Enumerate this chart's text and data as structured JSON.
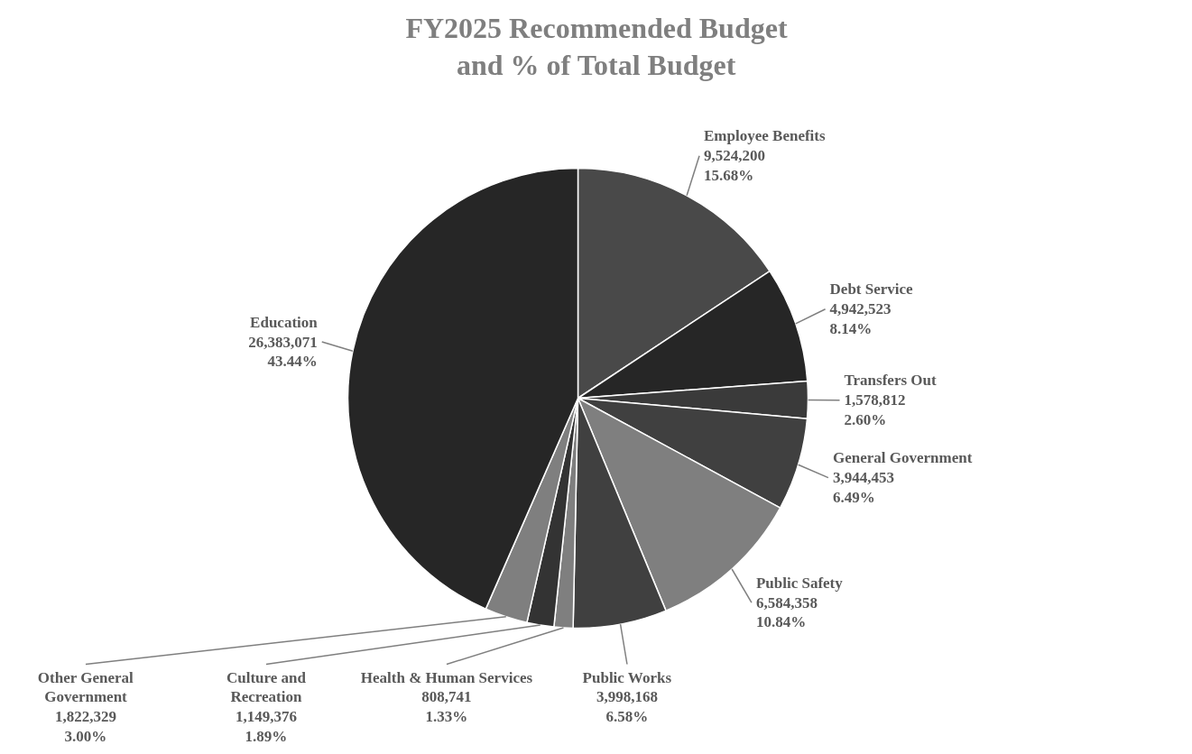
{
  "chart_data": {
    "type": "pie",
    "title": "FY2025 Recommended Budget\nand % of Total Budget",
    "categories": [
      "Employee Benefits",
      "Debt Service",
      "Transfers Out",
      "General Government",
      "Public Safety",
      "Public Works",
      "Health & Human Services",
      "Culture and\nRecreation",
      "Other General\nGovernment",
      "Education"
    ],
    "values": [
      9524200,
      4942523,
      1578812,
      3944453,
      6584358,
      3998168,
      808741,
      1149376,
      1822329,
      26383071
    ],
    "value_labels": [
      "9,524,200\n15.68%",
      "4,942,523\n8.14%",
      "1,578,812\n2.60%",
      "3,944,453\n6.49%",
      "6,584,358\n10.84%",
      "3,998,168\n6.58%",
      "808,741\n1.33%",
      "1,149,376\n1.89%",
      "1,822,329\n3.00%",
      "26,383,071\n43.44%"
    ],
    "colors": [
      "#494949",
      "#262626",
      "#3a3a3a",
      "#404040",
      "#7f7f7f",
      "#404040",
      "#7f7f7f",
      "#333333",
      "#7f7f7f",
      "#262626"
    ]
  }
}
